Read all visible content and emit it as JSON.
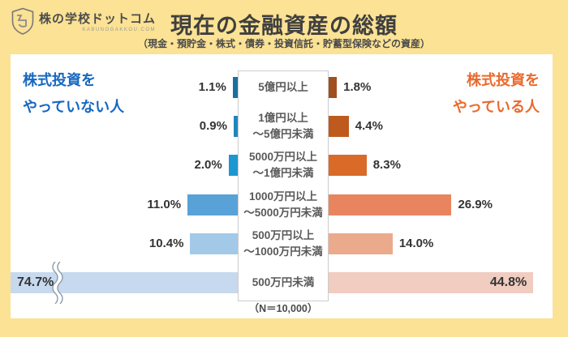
{
  "logo": {
    "name": "株の学校ドットコム",
    "domain": "KABUNOGAKKOU.COM"
  },
  "header": {
    "title": "現在の金融資産の総額",
    "subtitle": "（現金・預貯金・株式・債券・投資信託・貯蓄型保険などの資産）"
  },
  "panel": {
    "left_group_label_line1": "株式投資を",
    "left_group_label_line2": "やっていない人",
    "right_group_label_line1": "株式投資を",
    "right_group_label_line2": "やっている人",
    "note": "（N＝10,000）"
  },
  "colors": {
    "background": "#fbe294",
    "left_accent": "#1668c0",
    "right_accent": "#e96a2d",
    "left_bars": [
      "#1b6f9e",
      "#1f86bd",
      "#1d97cf",
      "#58a2d7",
      "#a3c9e8",
      "#c7d9ee"
    ],
    "right_bars": [
      "#a0501d",
      "#bf5a1f",
      "#d96a28",
      "#e8855e",
      "#ecaa8c",
      "#f1ccc0"
    ]
  },
  "chart_data": {
    "type": "bar",
    "orientation": "diverging_horizontal",
    "title": "現在の金融資産の総額",
    "subtitle": "（現金・預貯金・株式・債券・投資信託・貯蓄型保険などの資産）",
    "sample_note": "（N＝10,000）",
    "unit": "%",
    "categories": [
      [
        "5億円以上"
      ],
      [
        "1億円以上",
        "～5億円未満"
      ],
      [
        "5000万円以上",
        "～1億円未満"
      ],
      [
        "1000万円以上",
        "～5000万円未満"
      ],
      [
        "500万円以上",
        "～1000万円未満"
      ],
      [
        "500万円未満"
      ]
    ],
    "series": [
      {
        "name": "株式投資をやっていない人",
        "side": "left",
        "values": [
          1.1,
          0.9,
          2.0,
          11.0,
          10.4,
          74.7
        ],
        "labels": [
          "1.1%",
          "0.9%",
          "2.0%",
          "11.0%",
          "10.4%",
          "74.7%"
        ]
      },
      {
        "name": "株式投資をやっている人",
        "side": "right",
        "values": [
          1.8,
          4.4,
          8.3,
          26.9,
          14.0,
          44.8
        ],
        "labels": [
          "1.8%",
          "4.4%",
          "8.3%",
          "26.9%",
          "14.0%",
          "44.8%"
        ]
      }
    ],
    "truncated_bar": {
      "series": "left",
      "row_index": 5,
      "note": "axis break (wavy mark) on 74.7% bar"
    },
    "labels_inside_bar_row_index": 5
  }
}
